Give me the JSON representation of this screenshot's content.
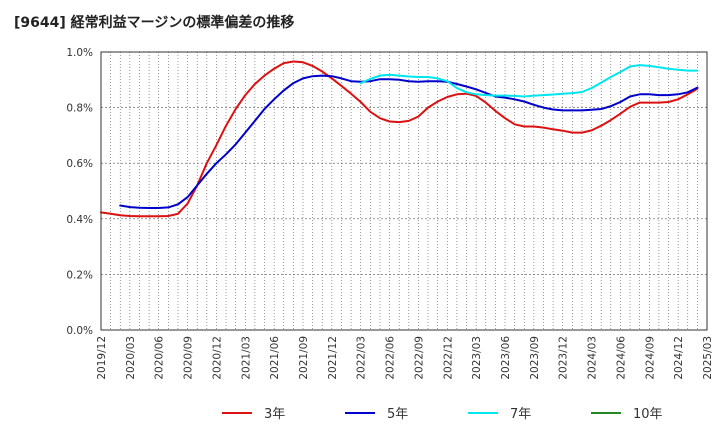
{
  "title": "[9644]  経常利益マージンの標準偏差の推移",
  "chart_data": {
    "type": "line",
    "title": "[9644]  経常利益マージンの標準偏差の推移",
    "xlabel": "",
    "ylabel": "",
    "x_ticks": [
      "2019/12",
      "2020/03",
      "2020/06",
      "2020/09",
      "2020/12",
      "2021/03",
      "2021/06",
      "2021/09",
      "2021/12",
      "2022/03",
      "2022/06",
      "2022/09",
      "2022/12",
      "2023/03",
      "2023/06",
      "2023/09",
      "2023/12",
      "2024/03",
      "2024/06",
      "2024/09",
      "2024/12",
      "2025/03"
    ],
    "y_ticks": [
      "0.0%",
      "0.2%",
      "0.4%",
      "0.6%",
      "0.8%",
      "1.0%"
    ],
    "ylim": [
      0,
      1.0
    ],
    "grid": true,
    "legend_position": "bottom",
    "series": [
      {
        "name": "3年",
        "color": "#dd1111",
        "points": [
          [
            "2019/12",
            0.423
          ],
          [
            "2020/01",
            0.418
          ],
          [
            "2020/02",
            0.413
          ],
          [
            "2020/03",
            0.41
          ],
          [
            "2020/04",
            0.409
          ],
          [
            "2020/05",
            0.409
          ],
          [
            "2020/06",
            0.409
          ],
          [
            "2020/07",
            0.41
          ],
          [
            "2020/08",
            0.418
          ],
          [
            "2020/09",
            0.455
          ],
          [
            "2020/10",
            0.52
          ],
          [
            "2020/11",
            0.6
          ],
          [
            "2020/12",
            0.665
          ],
          [
            "2021/01",
            0.735
          ],
          [
            "2021/02",
            0.795
          ],
          [
            "2021/03",
            0.845
          ],
          [
            "2021/04",
            0.885
          ],
          [
            "2021/05",
            0.915
          ],
          [
            "2021/06",
            0.94
          ],
          [
            "2021/07",
            0.96
          ],
          [
            "2021/08",
            0.966
          ],
          [
            "2021/09",
            0.963
          ],
          [
            "2021/10",
            0.95
          ],
          [
            "2021/11",
            0.93
          ],
          [
            "2021/12",
            0.905
          ],
          [
            "2022/01",
            0.878
          ],
          [
            "2022/02",
            0.85
          ],
          [
            "2022/03",
            0.82
          ],
          [
            "2022/04",
            0.785
          ],
          [
            "2022/05",
            0.762
          ],
          [
            "2022/06",
            0.75
          ],
          [
            "2022/07",
            0.748
          ],
          [
            "2022/08",
            0.752
          ],
          [
            "2022/09",
            0.768
          ],
          [
            "2022/10",
            0.8
          ],
          [
            "2022/11",
            0.822
          ],
          [
            "2022/12",
            0.838
          ],
          [
            "2023/01",
            0.848
          ],
          [
            "2023/02",
            0.85
          ],
          [
            "2023/03",
            0.842
          ],
          [
            "2023/04",
            0.818
          ],
          [
            "2023/05",
            0.788
          ],
          [
            "2023/06",
            0.762
          ],
          [
            "2023/07",
            0.74
          ],
          [
            "2023/08",
            0.732
          ],
          [
            "2023/09",
            0.732
          ],
          [
            "2023/10",
            0.728
          ],
          [
            "2023/11",
            0.722
          ],
          [
            "2023/12",
            0.717
          ],
          [
            "2024/01",
            0.71
          ],
          [
            "2024/02",
            0.71
          ],
          [
            "2024/03",
            0.718
          ],
          [
            "2024/04",
            0.735
          ],
          [
            "2024/05",
            0.755
          ],
          [
            "2024/06",
            0.778
          ],
          [
            "2024/07",
            0.803
          ],
          [
            "2024/08",
            0.818
          ],
          [
            "2024/09",
            0.818
          ],
          [
            "2024/10",
            0.818
          ],
          [
            "2024/11",
            0.82
          ],
          [
            "2024/12",
            0.83
          ],
          [
            "2025/01",
            0.848
          ],
          [
            "2025/02",
            0.868
          ]
        ]
      },
      {
        "name": "5年",
        "color": "#0000cc",
        "points": [
          [
            "2020/02",
            0.448
          ],
          [
            "2020/03",
            0.442
          ],
          [
            "2020/04",
            0.44
          ],
          [
            "2020/05",
            0.439
          ],
          [
            "2020/06",
            0.439
          ],
          [
            "2020/07",
            0.441
          ],
          [
            "2020/08",
            0.452
          ],
          [
            "2020/09",
            0.478
          ],
          [
            "2020/10",
            0.52
          ],
          [
            "2020/11",
            0.562
          ],
          [
            "2020/12",
            0.6
          ],
          [
            "2021/01",
            0.632
          ],
          [
            "2021/02",
            0.668
          ],
          [
            "2021/03",
            0.71
          ],
          [
            "2021/04",
            0.752
          ],
          [
            "2021/05",
            0.795
          ],
          [
            "2021/06",
            0.83
          ],
          [
            "2021/07",
            0.862
          ],
          [
            "2021/08",
            0.888
          ],
          [
            "2021/09",
            0.905
          ],
          [
            "2021/10",
            0.913
          ],
          [
            "2021/11",
            0.915
          ],
          [
            "2021/12",
            0.913
          ],
          [
            "2022/01",
            0.905
          ],
          [
            "2022/02",
            0.895
          ],
          [
            "2022/03",
            0.893
          ],
          [
            "2022/04",
            0.895
          ],
          [
            "2022/05",
            0.902
          ],
          [
            "2022/06",
            0.902
          ],
          [
            "2022/07",
            0.9
          ],
          [
            "2022/08",
            0.895
          ],
          [
            "2022/09",
            0.893
          ],
          [
            "2022/10",
            0.895
          ],
          [
            "2022/11",
            0.895
          ],
          [
            "2022/12",
            0.893
          ],
          [
            "2023/01",
            0.885
          ],
          [
            "2023/02",
            0.876
          ],
          [
            "2023/03",
            0.866
          ],
          [
            "2023/04",
            0.853
          ],
          [
            "2023/05",
            0.84
          ],
          [
            "2023/06",
            0.836
          ],
          [
            "2023/07",
            0.83
          ],
          [
            "2023/08",
            0.822
          ],
          [
            "2023/09",
            0.81
          ],
          [
            "2023/10",
            0.8
          ],
          [
            "2023/11",
            0.793
          ],
          [
            "2023/12",
            0.79
          ],
          [
            "2024/01",
            0.79
          ],
          [
            "2024/02",
            0.79
          ],
          [
            "2024/03",
            0.792
          ],
          [
            "2024/04",
            0.795
          ],
          [
            "2024/05",
            0.805
          ],
          [
            "2024/06",
            0.82
          ],
          [
            "2024/07",
            0.84
          ],
          [
            "2024/08",
            0.848
          ],
          [
            "2024/09",
            0.848
          ],
          [
            "2024/10",
            0.845
          ],
          [
            "2024/11",
            0.845
          ],
          [
            "2024/12",
            0.848
          ],
          [
            "2025/01",
            0.855
          ],
          [
            "2025/02",
            0.872
          ]
        ]
      },
      {
        "name": "7年",
        "color": "#00e5ee",
        "points": [
          [
            "2022/03",
            0.888
          ],
          [
            "2022/04",
            0.903
          ],
          [
            "2022/05",
            0.915
          ],
          [
            "2022/06",
            0.918
          ],
          [
            "2022/07",
            0.915
          ],
          [
            "2022/08",
            0.912
          ],
          [
            "2022/09",
            0.91
          ],
          [
            "2022/10",
            0.91
          ],
          [
            "2022/11",
            0.905
          ],
          [
            "2022/12",
            0.895
          ],
          [
            "2023/01",
            0.87
          ],
          [
            "2023/02",
            0.855
          ],
          [
            "2023/03",
            0.848
          ],
          [
            "2023/04",
            0.845
          ],
          [
            "2023/05",
            0.843
          ],
          [
            "2023/06",
            0.843
          ],
          [
            "2023/07",
            0.842
          ],
          [
            "2023/08",
            0.84
          ],
          [
            "2023/09",
            0.843
          ],
          [
            "2023/10",
            0.845
          ],
          [
            "2023/11",
            0.847
          ],
          [
            "2023/12",
            0.85
          ],
          [
            "2024/01",
            0.852
          ],
          [
            "2024/02",
            0.856
          ],
          [
            "2024/03",
            0.87
          ],
          [
            "2024/04",
            0.89
          ],
          [
            "2024/05",
            0.91
          ],
          [
            "2024/06",
            0.928
          ],
          [
            "2024/07",
            0.948
          ],
          [
            "2024/08",
            0.953
          ],
          [
            "2024/09",
            0.95
          ],
          [
            "2024/10",
            0.945
          ],
          [
            "2024/11",
            0.94
          ],
          [
            "2024/12",
            0.936
          ],
          [
            "2025/01",
            0.933
          ],
          [
            "2025/02",
            0.933
          ]
        ]
      },
      {
        "name": "10年",
        "color": "#228822",
        "points": []
      }
    ]
  }
}
